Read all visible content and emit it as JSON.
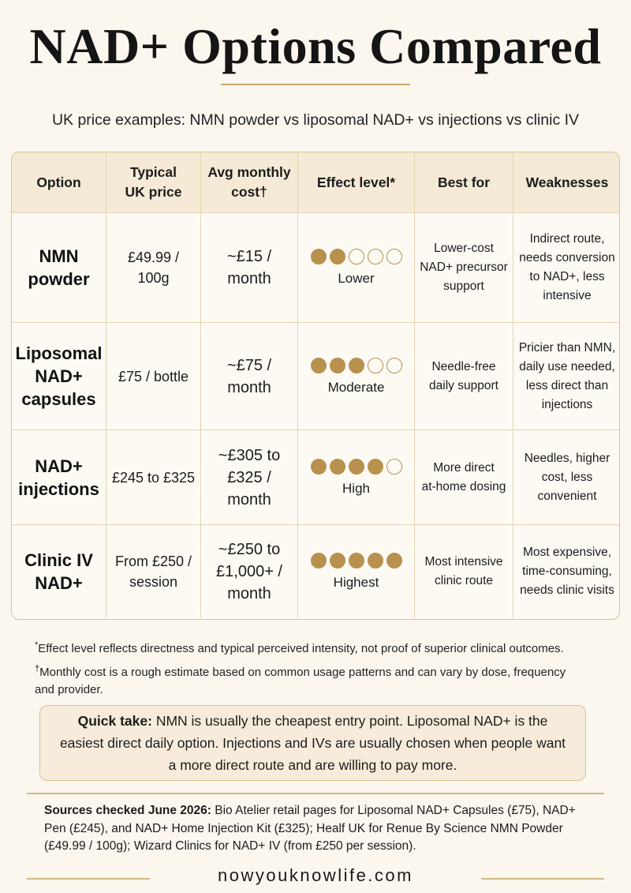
{
  "title": "NAD+ Options Compared",
  "subtitle": "UK price examples: NMN powder vs liposomal NAD+ vs injections vs clinic IV",
  "colors": {
    "accent": "#b8914f",
    "header_bg": "#f5ead5",
    "border": "#d9c49a",
    "background": "#fbf7ef"
  },
  "table": {
    "headers": {
      "option": "Option",
      "price": "Typical\nUK price",
      "cost": "Avg monthly\ncost†",
      "effect": "Effect level*",
      "best": "Best for",
      "weak": "Weaknesses"
    },
    "rows": [
      {
        "option": "NMN\npowder",
        "price": "£49.99 / 100g",
        "cost": "~£15 /\nmonth",
        "effect_dots": 2,
        "effect_label": "Lower",
        "best": "Lower-cost\nNAD+ precursor\nsupport",
        "weak": "Indirect route,\nneeds conversion\nto NAD+, less\nintensive"
      },
      {
        "option": "Liposomal\nNAD+\ncapsules",
        "price": "£75 / bottle",
        "cost": "~£75 /\nmonth",
        "effect_dots": 3,
        "effect_label": "Moderate",
        "best": "Needle-free\ndaily support",
        "weak": "Pricier than NMN,\ndaily use needed,\nless direct than\ninjections"
      },
      {
        "option": "NAD+\ninjections",
        "price": "£245 to £325",
        "cost": "~£305 to\n£325 /\nmonth",
        "effect_dots": 4,
        "effect_label": "High",
        "best": "More direct\nat-home dosing",
        "weak": "Needles, higher\ncost, less\nconvenient"
      },
      {
        "option": "Clinic IV\nNAD+",
        "price": "From £250 /\nsession",
        "cost": "~£250 to\n£1,000+ /\nmonth",
        "effect_dots": 5,
        "effect_label": "Highest",
        "best": "Most intensive\nclinic route",
        "weak": "Most expensive,\ntime-consuming,\nneeds clinic visits"
      }
    ]
  },
  "notes": {
    "effect_mark": "*",
    "effect": "Effect level reflects directness and typical perceived intensity, not proof of superior clinical outcomes.",
    "cost_mark": "†",
    "cost": "Monthly cost is a rough estimate based on common usage patterns and can vary by dose, frequency and provider."
  },
  "quick_take": {
    "label": "Quick take:",
    "text": " NMN is usually the cheapest entry point. Liposomal NAD+ is the easiest direct daily option. Injections and IVs are usually chosen when people want a more direct route and are willing to pay more."
  },
  "sources": {
    "label": "Sources checked June 2026:",
    "text": " Bio Atelier retail pages for Liposomal NAD+ Capsules (£75), NAD+ Pen (£245), and NAD+ Home Injection Kit (£325); Healf UK for Renue By Science NMN Powder (£49.99 / 100g); Wizard Clinics for NAD+ IV (from £250 per session)."
  },
  "website": "nowyouknowlife.com"
}
